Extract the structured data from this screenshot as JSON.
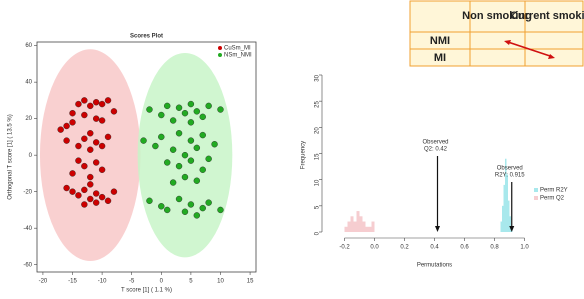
{
  "chart_data": [
    {
      "type": "scatter",
      "title": "Scores Plot",
      "x_label": "T score [1] ( 1.1 %)",
      "y_label": "Orthogonal T score [1] ( 13.5 %)",
      "xlim": [
        -21,
        16
      ],
      "xticks": [
        -20,
        -15,
        -10,
        -5,
        0,
        5,
        10,
        15
      ],
      "ylim": [
        -64,
        62
      ],
      "yticks": [
        -60,
        -40,
        -20,
        0,
        20,
        40,
        60
      ],
      "legend": "top-right",
      "series": [
        {
          "name": "CuSm_MI",
          "color": "#cc0000",
          "ellipse_color": "#f8c8c8",
          "ellipse": {
            "cx": -12,
            "cy": 0,
            "rx": 8.5,
            "ry": 58
          },
          "x": [
            -17,
            -16,
            -15,
            -14,
            -13,
            -12,
            -11,
            -10,
            -9,
            -8,
            -13,
            -11,
            -15,
            -10,
            -16,
            -14,
            -13,
            -12,
            -11,
            -10,
            -9,
            -12,
            -14,
            -13,
            -11,
            -10,
            -12,
            -15,
            -16,
            -15,
            -14,
            -13,
            -12,
            -11,
            -10,
            -9,
            -8,
            -13,
            -11,
            -12
          ],
          "values": [
            14,
            16,
            18,
            28,
            30,
            27,
            29,
            28,
            30,
            24,
            22,
            20,
            23,
            19,
            8,
            5,
            9,
            3,
            7,
            5,
            10,
            12,
            -3,
            -6,
            -4,
            -8,
            -12,
            -10,
            -18,
            -20,
            -22,
            -19,
            -24,
            -21,
            -23,
            -25,
            -20,
            -27,
            -26,
            -16
          ]
        },
        {
          "name": "NSm_NMI",
          "color": "#22aa22",
          "ellipse_color": "#c8f4c8",
          "ellipse": {
            "cx": 4,
            "cy": 0,
            "rx": 8,
            "ry": 56
          },
          "x": [
            -2,
            0,
            1,
            3,
            4,
            5,
            6,
            7,
            8,
            10,
            2,
            5,
            -3,
            -1,
            0,
            2,
            3,
            4,
            5,
            6,
            7,
            9,
            1,
            3,
            5,
            7,
            8,
            4,
            2,
            6,
            -2,
            0,
            1,
            3,
            4,
            5,
            6,
            7,
            8,
            10
          ],
          "values": [
            25,
            22,
            27,
            26,
            23,
            28,
            24,
            21,
            27,
            25,
            19,
            18,
            8,
            5,
            10,
            3,
            12,
            0,
            8,
            4,
            11,
            6,
            -4,
            -6,
            -3,
            -8,
            -2,
            -12,
            -15,
            -14,
            -25,
            -28,
            -30,
            -24,
            -31,
            -27,
            -33,
            -29,
            -26,
            -30
          ]
        }
      ]
    },
    {
      "type": "histogram",
      "x_label": "Permutations",
      "y_label": "Frequency",
      "xlim": [
        -0.35,
        1.05
      ],
      "xticks": [
        -0.2,
        {
          "value": 0,
          "label": "0.0"
        },
        0.2,
        0.4,
        0.6,
        0.8,
        {
          "value": 1,
          "label": "1.0"
        }
      ],
      "ylim": [
        0,
        30
      ],
      "yticks": [
        0,
        5,
        10,
        15,
        20,
        25,
        30
      ],
      "series": [
        {
          "name": "Perm R2Y",
          "color": "#a8e8ec",
          "bins": [
            0.84,
            0.85,
            0.86,
            0.87,
            0.88,
            0.89,
            0.9,
            0.91,
            0.92
          ],
          "values": [
            2,
            5,
            9,
            14,
            11,
            6,
            3,
            1
          ]
        },
        {
          "name": "Perm Q2",
          "color": "#f6cdd0",
          "bins": [
            -0.2,
            -0.18,
            -0.16,
            -0.14,
            -0.12,
            -0.1,
            -0.08,
            -0.06,
            -0.04,
            -0.02,
            0
          ],
          "values": [
            1,
            2,
            3,
            2,
            4,
            3,
            2,
            1,
            1,
            2
          ]
        }
      ],
      "annotations": [
        {
          "x": 0.42,
          "label": [
            "Observed",
            "Q2: 0.42"
          ]
        },
        {
          "x": 0.915,
          "label": [
            "Observed",
            "R2Y: 0.915"
          ]
        }
      ]
    }
  ],
  "table": {
    "header": [
      "Non smoking",
      "Current smoking"
    ],
    "rows": [
      "NMI",
      "MI"
    ]
  }
}
